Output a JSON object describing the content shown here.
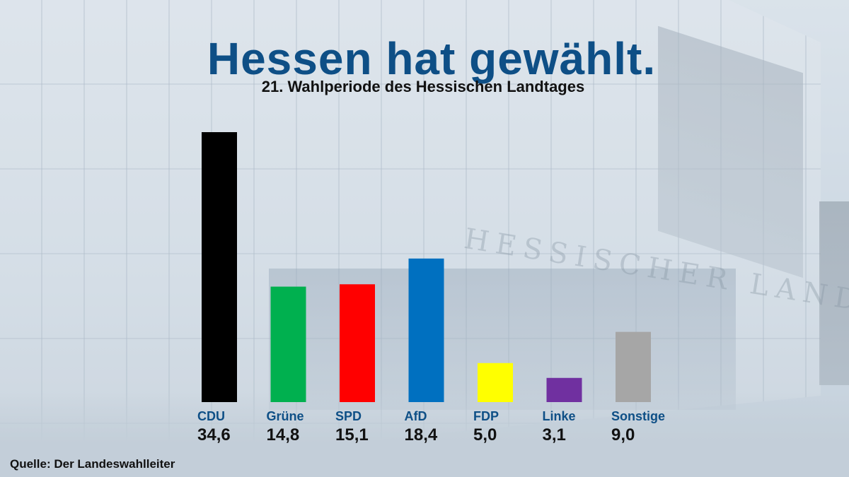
{
  "header": {
    "title": "Hessen hat gewählt.",
    "subtitle": "21. Wahlperiode des Hessischen Landtages"
  },
  "footer": {
    "source": "Quelle: Der Landeswahlleiter"
  },
  "background": {
    "building_lettering": "HESSISCHER LANDTAG"
  },
  "chart_data": {
    "type": "bar",
    "title": "Hessen hat gewählt.",
    "subtitle": "21. Wahlperiode des Hessischen Landtages",
    "xlabel": "",
    "ylabel": "",
    "grid": false,
    "ylim": [
      0,
      36
    ],
    "categories": [
      "CDU",
      "Grüne",
      "SPD",
      "AfD",
      "FDP",
      "Linke",
      "Sonstige"
    ],
    "values": [
      34.6,
      14.8,
      15.1,
      18.4,
      5.0,
      3.1,
      9.0
    ],
    "value_labels": [
      "34,6",
      "14,8",
      "15,1",
      "18,4",
      "5,0",
      "3,1",
      "9,0"
    ],
    "colors": [
      "#000000",
      "#00b04f",
      "#ff0000",
      "#0070c0",
      "#ffff00",
      "#7030a0",
      "#a6a6a6"
    ],
    "category_label_color": "#0e4f86",
    "value_label_color": "#111111"
  }
}
